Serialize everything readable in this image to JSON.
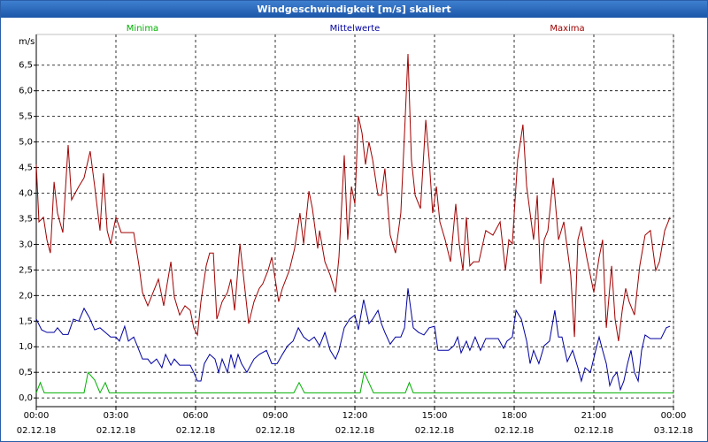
{
  "chart_data": {
    "type": "line",
    "title": "Windgeschwindigkeit [m/s] skaliert",
    "y_label": "m/s",
    "xlim": [
      0,
      24
    ],
    "ylim": [
      -0.17,
      7.1
    ],
    "xticks": [
      {
        "value": 0,
        "label": "00:00\n02.12.18"
      },
      {
        "value": 3,
        "label": "03:00\n02.12.18"
      },
      {
        "value": 6,
        "label": "06:00\n02.12.18"
      },
      {
        "value": 9,
        "label": "09:00\n02.12.18"
      },
      {
        "value": 12,
        "label": "12:00\n02.12.18"
      },
      {
        "value": 15,
        "label": "15:00\n02.12.18"
      },
      {
        "value": 18,
        "label": "18:00\n02.12.18"
      },
      {
        "value": 21,
        "label": "21:00\n02.12.18"
      },
      {
        "value": 24,
        "label": "00:00\n03.12.18"
      }
    ],
    "yticks": [
      {
        "value": 0,
        "label": "0,0"
      },
      {
        "value": 0.5,
        "label": "0,5"
      },
      {
        "value": 1,
        "label": "1,0"
      },
      {
        "value": 1.5,
        "label": "1,5"
      },
      {
        "value": 2,
        "label": "2,0"
      },
      {
        "value": 2.5,
        "label": "2,5"
      },
      {
        "value": 3,
        "label": "3,0"
      },
      {
        "value": 3.5,
        "label": "3,5"
      },
      {
        "value": 4,
        "label": "4,0"
      },
      {
        "value": 4.5,
        "label": "4,5"
      },
      {
        "value": 5,
        "label": "5,0"
      },
      {
        "value": 5.5,
        "label": "5,5"
      },
      {
        "value": 6,
        "label": "6,0"
      },
      {
        "value": 6.5,
        "label": "6,5"
      }
    ],
    "grid": true,
    "series": [
      {
        "name": "Minima",
        "color": "#00b000",
        "x": [
          0,
          0.15,
          0.3,
          1.8,
          1.95,
          2.2,
          2.4,
          2.6,
          2.75,
          9.7,
          9.9,
          10.1,
          12.2,
          12.35,
          12.7,
          13.9,
          14.05,
          14.2,
          24
        ],
        "values": [
          0.1,
          0.3,
          0.1,
          0.1,
          0.5,
          0.35,
          0.1,
          0.3,
          0.1,
          0.1,
          0.3,
          0.1,
          0.1,
          0.5,
          0.1,
          0.1,
          0.3,
          0.1,
          0.1
        ]
      },
      {
        "name": "Mittelwerte",
        "color": "#0000a0",
        "x": [
          0,
          0.2,
          0.4,
          0.67,
          0.8,
          1.0,
          1.2,
          1.4,
          1.6,
          1.8,
          2.0,
          2.2,
          2.4,
          2.6,
          2.8,
          3.0,
          3.13,
          3.33,
          3.47,
          3.67,
          3.87,
          4.0,
          4.2,
          4.33,
          4.53,
          4.73,
          4.87,
          5.07,
          5.2,
          5.4,
          5.6,
          5.8,
          5.93,
          6.07,
          6.2,
          6.33,
          6.53,
          6.73,
          6.87,
          7.0,
          7.2,
          7.33,
          7.47,
          7.6,
          7.73,
          7.93,
          8.2,
          8.4,
          8.67,
          8.87,
          9.07,
          9.27,
          9.47,
          9.67,
          9.87,
          10.07,
          10.27,
          10.47,
          10.67,
          10.87,
          11.07,
          11.27,
          11.4,
          11.6,
          11.8,
          12.0,
          12.13,
          12.33,
          12.53,
          12.67,
          12.87,
          13.0,
          13.13,
          13.33,
          13.53,
          13.73,
          13.87,
          14.0,
          14.2,
          14.4,
          14.6,
          14.8,
          15.0,
          15.13,
          15.33,
          15.53,
          15.73,
          15.87,
          16.0,
          16.2,
          16.33,
          16.53,
          16.73,
          16.93,
          17.2,
          17.4,
          17.6,
          17.73,
          17.93,
          18.07,
          18.27,
          18.47,
          18.6,
          18.73,
          18.93,
          19.13,
          19.33,
          19.53,
          19.67,
          19.8,
          20.0,
          20.2,
          20.4,
          20.53,
          20.67,
          20.87,
          21.07,
          21.2,
          21.33,
          21.47,
          21.6,
          21.73,
          21.87,
          22.0,
          22.13,
          22.27,
          22.4,
          22.53,
          22.67,
          22.8,
          22.93,
          23.13,
          23.33,
          23.53,
          23.73,
          23.87
        ],
        "values": [
          1.54,
          1.33,
          1.28,
          1.28,
          1.37,
          1.24,
          1.24,
          1.54,
          1.5,
          1.75,
          1.57,
          1.33,
          1.37,
          1.28,
          1.19,
          1.19,
          1.11,
          1.4,
          1.11,
          1.19,
          0.93,
          0.76,
          0.76,
          0.67,
          0.76,
          0.59,
          0.85,
          0.64,
          0.76,
          0.64,
          0.64,
          0.64,
          0.5,
          0.33,
          0.33,
          0.67,
          0.85,
          0.76,
          0.5,
          0.76,
          0.5,
          0.85,
          0.59,
          0.85,
          0.67,
          0.5,
          0.76,
          0.85,
          0.93,
          0.67,
          0.67,
          0.85,
          1.02,
          1.11,
          1.37,
          1.19,
          1.11,
          1.19,
          1.02,
          1.28,
          0.93,
          0.76,
          0.93,
          1.37,
          1.54,
          1.62,
          1.33,
          1.92,
          1.45,
          1.54,
          1.71,
          1.45,
          1.28,
          1.05,
          1.19,
          1.19,
          1.37,
          2.14,
          1.37,
          1.28,
          1.23,
          1.37,
          1.4,
          0.93,
          0.93,
          0.93,
          1.02,
          1.19,
          0.88,
          1.11,
          0.93,
          1.19,
          0.93,
          1.16,
          1.16,
          1.16,
          0.97,
          1.11,
          1.19,
          1.71,
          1.54,
          1.11,
          0.67,
          0.93,
          0.67,
          1.02,
          1.11,
          1.71,
          1.19,
          1.19,
          0.71,
          0.93,
          0.59,
          0.33,
          0.59,
          0.5,
          0.93,
          1.19,
          0.93,
          0.67,
          0.24,
          0.41,
          0.5,
          0.16,
          0.33,
          0.67,
          0.93,
          0.5,
          0.33,
          0.93,
          1.23,
          1.16,
          1.16,
          1.16,
          1.37,
          1.4
        ]
      },
      {
        "name": "Maxima",
        "color": "#a00000",
        "x": [
          0,
          0.1,
          0.27,
          0.4,
          0.53,
          0.67,
          0.8,
          1.0,
          1.2,
          1.33,
          1.6,
          1.8,
          2.03,
          2.2,
          2.4,
          2.53,
          2.67,
          2.8,
          3.0,
          3.2,
          3.67,
          3.87,
          4.0,
          4.2,
          4.4,
          4.6,
          4.8,
          4.93,
          5.07,
          5.2,
          5.4,
          5.6,
          5.8,
          5.93,
          6.07,
          6.2,
          6.4,
          6.53,
          6.67,
          6.8,
          7.0,
          7.2,
          7.33,
          7.47,
          7.67,
          7.8,
          8.0,
          8.2,
          8.4,
          8.53,
          8.73,
          8.87,
          9.13,
          9.27,
          9.53,
          9.73,
          9.93,
          10.07,
          10.27,
          10.4,
          10.6,
          10.67,
          10.87,
          11.07,
          11.27,
          11.4,
          11.6,
          11.73,
          11.87,
          12.0,
          12.13,
          12.27,
          12.4,
          12.53,
          12.67,
          12.87,
          13.0,
          13.13,
          13.33,
          13.53,
          13.73,
          13.87,
          14.0,
          14.13,
          14.27,
          14.47,
          14.67,
          14.8,
          14.93,
          15.07,
          15.2,
          15.4,
          15.6,
          15.8,
          15.93,
          16.07,
          16.2,
          16.33,
          16.47,
          16.67,
          16.93,
          17.2,
          17.47,
          17.67,
          17.8,
          17.93,
          18.13,
          18.33,
          18.47,
          18.6,
          18.73,
          18.87,
          19.0,
          19.13,
          19.27,
          19.47,
          19.67,
          19.87,
          20.13,
          20.27,
          20.4,
          20.53,
          20.73,
          21.0,
          21.2,
          21.33,
          21.47,
          21.67,
          21.8,
          21.93,
          22.07,
          22.2,
          22.33,
          22.53,
          22.73,
          22.93,
          23.13,
          23.33,
          23.47,
          23.67,
          23.87
        ],
        "values": [
          4.56,
          3.44,
          3.53,
          3.09,
          2.83,
          4.22,
          3.61,
          3.23,
          4.94,
          3.87,
          4.13,
          4.3,
          4.82,
          4.13,
          3.27,
          4.39,
          3.27,
          3.01,
          3.53,
          3.23,
          3.23,
          2.58,
          2.06,
          1.8,
          2.06,
          2.32,
          1.8,
          2.23,
          2.66,
          1.97,
          1.62,
          1.8,
          1.71,
          1.37,
          1.23,
          1.88,
          2.58,
          2.83,
          2.83,
          1.54,
          1.88,
          2.06,
          2.32,
          1.71,
          3.01,
          2.4,
          1.45,
          1.88,
          2.14,
          2.23,
          2.49,
          2.75,
          1.88,
          2.14,
          2.49,
          2.92,
          3.61,
          3.01,
          4.04,
          3.7,
          2.92,
          3.27,
          2.66,
          2.4,
          2.06,
          2.75,
          4.74,
          3.09,
          4.13,
          3.79,
          5.51,
          5.17,
          4.56,
          5.0,
          4.65,
          3.96,
          3.96,
          4.48,
          3.18,
          2.83,
          3.61,
          5.17,
          6.72,
          4.65,
          3.96,
          3.7,
          5.43,
          4.65,
          3.61,
          4.13,
          3.44,
          3.09,
          2.66,
          3.79,
          3.01,
          2.49,
          3.53,
          2.58,
          2.66,
          2.66,
          3.27,
          3.18,
          3.44,
          2.49,
          3.09,
          3.01,
          4.65,
          5.34,
          4.13,
          3.61,
          3.09,
          3.96,
          2.23,
          3.09,
          3.27,
          4.3,
          3.09,
          3.44,
          2.4,
          1.19,
          3.09,
          3.35,
          2.75,
          2.06,
          2.75,
          3.09,
          1.37,
          2.58,
          1.54,
          1.11,
          1.71,
          2.14,
          1.88,
          1.62,
          2.58,
          3.18,
          3.27,
          2.49,
          2.66,
          3.27,
          3.53
        ]
      }
    ]
  }
}
